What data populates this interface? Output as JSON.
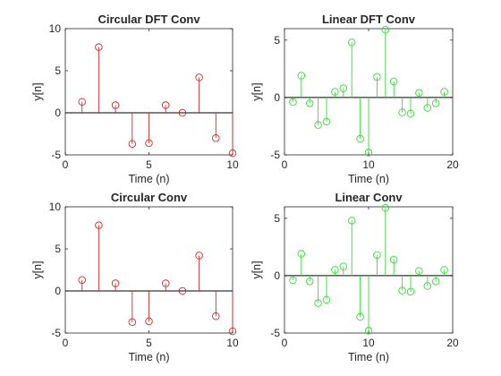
{
  "figure": {
    "background": "#ffffff"
  },
  "chart_data": [
    {
      "type": "stem",
      "title": "Circular DFT Conv",
      "xlabel": "Time (n)",
      "ylabel": "y[n]",
      "xlim": [
        0,
        10
      ],
      "ylim": [
        -5,
        10
      ],
      "xticks": [
        "0",
        "5",
        "10"
      ],
      "yticks": [
        "-5",
        "0",
        "5",
        "10"
      ],
      "color": "#d62728",
      "grid": false,
      "legend": "none",
      "series": [
        {
          "x": [
            1,
            2,
            3,
            4,
            5,
            6,
            7,
            8,
            9,
            10
          ],
          "y": [
            1.3,
            7.8,
            0.9,
            -3.7,
            -3.6,
            0.9,
            0,
            4.2,
            -3.0,
            -4.8
          ]
        }
      ]
    },
    {
      "type": "stem",
      "title": "Linear DFT Conv",
      "xlabel": "Time (n)",
      "ylabel": "y[n]",
      "xlim": [
        0,
        20
      ],
      "ylim": [
        -5,
        6
      ],
      "xticks": [
        "0",
        "10",
        "20"
      ],
      "yticks": [
        "-5",
        "0",
        "5"
      ],
      "color": "#33dd33",
      "grid": false,
      "legend": "none",
      "series": [
        {
          "x": [
            1,
            2,
            3,
            4,
            5,
            6,
            7,
            8,
            9,
            10,
            11,
            12,
            13,
            14,
            15,
            16,
            17,
            18,
            19
          ],
          "y": [
            -0.4,
            1.9,
            -0.5,
            -2.4,
            -2.1,
            0.5,
            0.8,
            4.8,
            -3.6,
            -4.8,
            1.8,
            5.9,
            1.4,
            -1.3,
            -1.4,
            0.4,
            -0.9,
            -0.5,
            0.5
          ]
        }
      ]
    },
    {
      "type": "stem",
      "title": "Circular Conv",
      "xlabel": "Time (n)",
      "ylabel": "y[n]",
      "xlim": [
        0,
        10
      ],
      "ylim": [
        -5,
        10
      ],
      "xticks": [
        "0",
        "5",
        "10"
      ],
      "yticks": [
        "-5",
        "0",
        "5",
        "10"
      ],
      "color": "#d62728",
      "grid": false,
      "legend": "none",
      "series": [
        {
          "x": [
            1,
            2,
            3,
            4,
            5,
            6,
            7,
            8,
            9,
            10
          ],
          "y": [
            1.3,
            7.8,
            0.9,
            -3.7,
            -3.6,
            0.9,
            0,
            4.2,
            -3.0,
            -4.8
          ]
        }
      ]
    },
    {
      "type": "stem",
      "title": "Linear Conv",
      "xlabel": "Time (n)",
      "ylabel": "y[n]",
      "xlim": [
        0,
        20
      ],
      "ylim": [
        -5,
        6
      ],
      "xticks": [
        "0",
        "10",
        "20"
      ],
      "yticks": [
        "-5",
        "0",
        "5"
      ],
      "color": "#33dd33",
      "grid": false,
      "legend": "none",
      "series": [
        {
          "x": [
            1,
            2,
            3,
            4,
            5,
            6,
            7,
            8,
            9,
            10,
            11,
            12,
            13,
            14,
            15,
            16,
            17,
            18,
            19
          ],
          "y": [
            -0.4,
            1.9,
            -0.5,
            -2.4,
            -2.1,
            0.5,
            0.8,
            4.8,
            -3.6,
            -4.8,
            1.8,
            5.9,
            1.4,
            -1.3,
            -1.4,
            0.4,
            -0.9,
            -0.5,
            0.5
          ]
        }
      ]
    }
  ]
}
